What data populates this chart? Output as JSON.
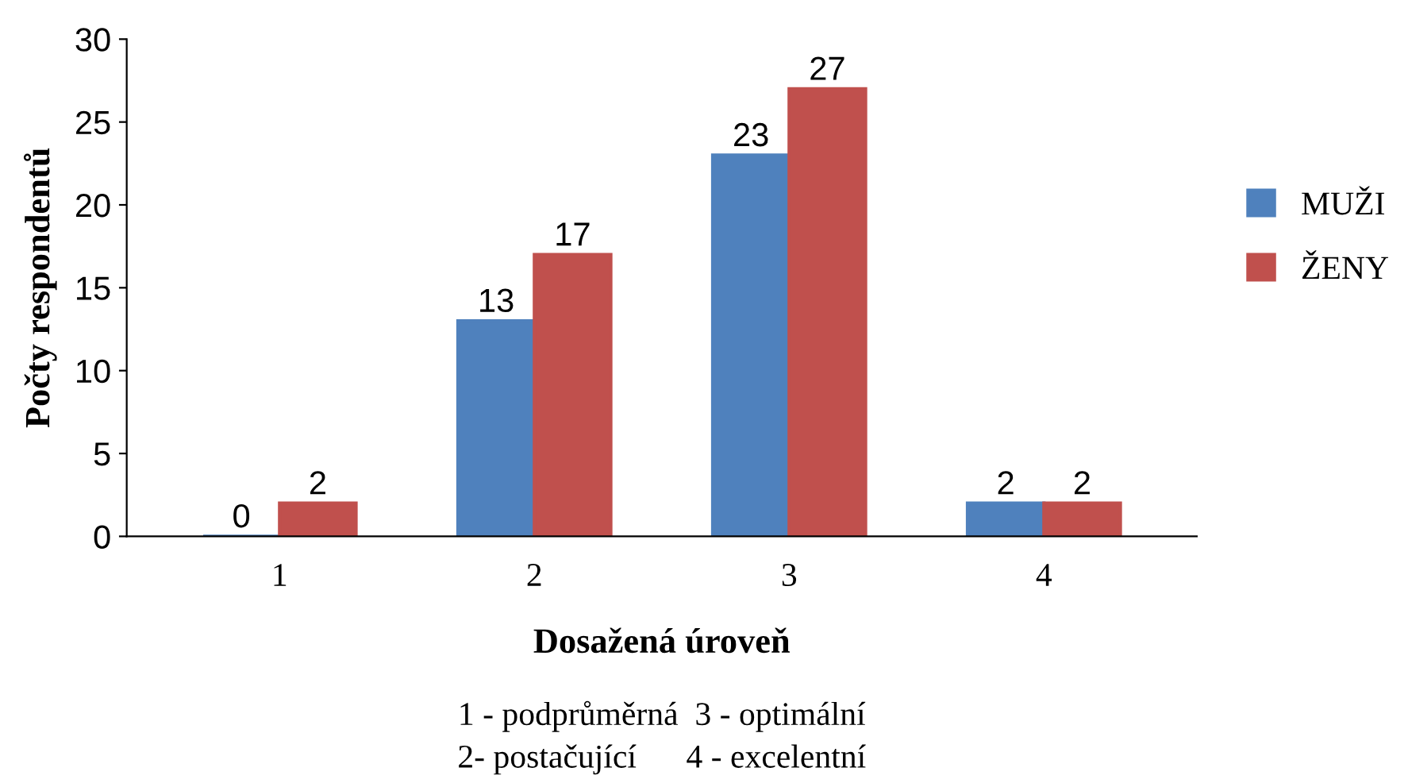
{
  "chart_data": {
    "type": "bar",
    "xlabel": "Dosažená úroveň",
    "ylabel": "Počty respondentů",
    "categories": [
      "1",
      "2",
      "3",
      "4"
    ],
    "series": [
      {
        "name": "MUŽI",
        "color": "#4f81bd",
        "values": [
          0,
          13,
          23,
          2
        ]
      },
      {
        "name": "ŽENY",
        "color": "#c0504d",
        "values": [
          2,
          17,
          27,
          2
        ]
      }
    ],
    "ylim": [
      0,
      30
    ],
    "yticks": [
      0,
      5,
      10,
      15,
      20,
      25,
      30
    ],
    "data_labels": true,
    "legend": "right",
    "grid": false,
    "annotations": [
      "1 - podprůměrná  3 - optimální",
      "2- postačující      4 - excelentní"
    ]
  }
}
